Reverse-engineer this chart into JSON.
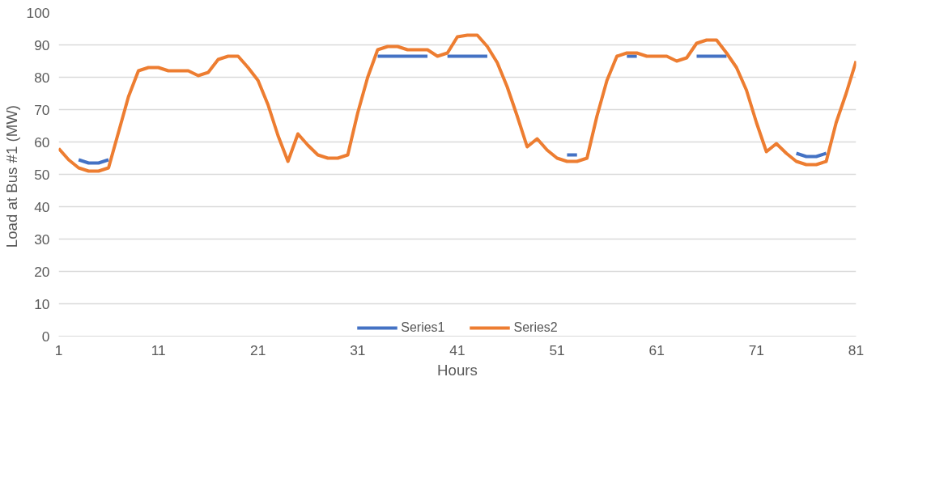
{
  "chart_data": {
    "type": "line",
    "xlabel": "Hours",
    "ylabel": "Load at Bus #1  (MW)",
    "x": [
      1,
      2,
      3,
      4,
      5,
      6,
      7,
      8,
      9,
      10,
      11,
      12,
      13,
      14,
      15,
      16,
      17,
      18,
      19,
      20,
      21,
      22,
      23,
      24,
      25,
      26,
      27,
      28,
      29,
      30,
      31,
      32,
      33,
      34,
      35,
      36,
      37,
      38,
      39,
      40,
      41,
      42,
      43,
      44,
      45,
      46,
      47,
      48,
      49,
      50,
      51,
      52,
      53,
      54,
      55,
      56,
      57,
      58,
      59,
      60,
      61,
      62,
      63,
      64,
      65,
      66,
      67,
      68,
      69,
      70,
      71,
      72,
      73,
      74,
      75,
      76,
      77,
      78,
      79,
      80,
      81
    ],
    "series": [
      {
        "name": "Series1",
        "color": "#4472c4",
        "values": [
          null,
          null,
          54.5,
          53.5,
          53.5,
          54.5,
          null,
          null,
          null,
          null,
          null,
          null,
          null,
          null,
          null,
          null,
          null,
          null,
          null,
          null,
          null,
          null,
          null,
          null,
          null,
          null,
          null,
          null,
          null,
          null,
          null,
          null,
          86.5,
          86.5,
          86.5,
          86.5,
          86.5,
          86.5,
          null,
          86.5,
          86.5,
          86.5,
          86.5,
          86.5,
          null,
          null,
          null,
          null,
          null,
          null,
          null,
          56,
          56,
          null,
          null,
          null,
          null,
          86.5,
          86.5,
          null,
          null,
          null,
          null,
          null,
          86.5,
          86.5,
          86.5,
          86.5,
          null,
          null,
          null,
          null,
          null,
          null,
          56.5,
          55.5,
          55.5,
          56.5,
          null,
          null,
          null
        ]
      },
      {
        "name": "Series2",
        "color": "#ed7d31",
        "values": [
          58,
          54.5,
          52,
          51,
          51,
          52,
          63,
          74,
          82,
          83,
          83,
          82,
          82,
          82,
          80.5,
          81.5,
          85.5,
          86.5,
          86.5,
          83,
          79,
          71.5,
          62,
          54,
          62.5,
          59,
          56,
          55,
          55,
          56,
          69,
          80,
          88.5,
          89.5,
          89.5,
          88.5,
          88.5,
          88.5,
          86.5,
          87.5,
          92.5,
          93,
          93,
          89.5,
          84.5,
          77,
          68,
          58.5,
          61,
          57.5,
          55,
          54,
          54,
          55,
          68,
          79,
          86.5,
          87.5,
          87.5,
          86.5,
          86.5,
          86.5,
          85,
          86,
          90.5,
          91.5,
          91.5,
          87.5,
          83,
          76,
          66,
          57,
          59.5,
          56.5,
          54,
          53,
          53,
          54,
          66,
          75,
          85
        ]
      }
    ],
    "xlim": [
      1,
      81
    ],
    "xticks": [
      1,
      11,
      21,
      31,
      41,
      51,
      61,
      71,
      81
    ],
    "ylim": [
      0,
      100
    ],
    "yticks": [
      0,
      10,
      20,
      30,
      40,
      50,
      60,
      70,
      80,
      90,
      100
    ],
    "grid": "y",
    "legend": "bottom",
    "marker": "none",
    "line_style": "solid"
  }
}
